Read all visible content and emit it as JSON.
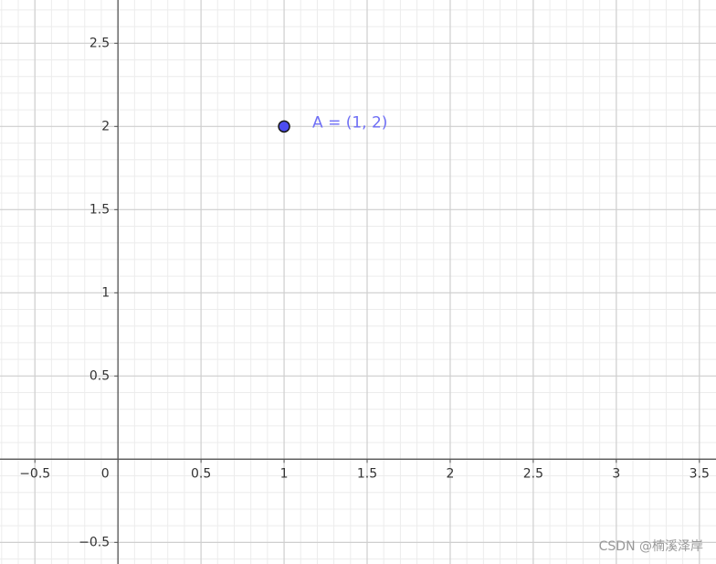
{
  "chart_data": {
    "type": "scatter",
    "series": [
      {
        "name": "A",
        "x": [
          1
        ],
        "values": [
          2
        ],
        "color": "#4c4cf0",
        "point_labels": [
          "A = (1, 2)"
        ],
        "label_color": "#6e6ef5"
      }
    ],
    "xlim": [
      -0.71,
      3.6
    ],
    "ylim": [
      -0.63,
      2.76
    ],
    "xticks": [
      {
        "value": -0.5,
        "label": "−0.5"
      },
      0,
      0.5,
      1,
      1.5,
      2,
      2.5,
      3,
      3.5
    ],
    "yticks": [
      {
        "value": -0.5,
        "label": "−0.5"
      },
      0.5,
      1,
      1.5,
      2,
      2.5
    ],
    "grid": true,
    "minor_grid": true,
    "watermark": "CSDN @楠溪泽岸"
  }
}
